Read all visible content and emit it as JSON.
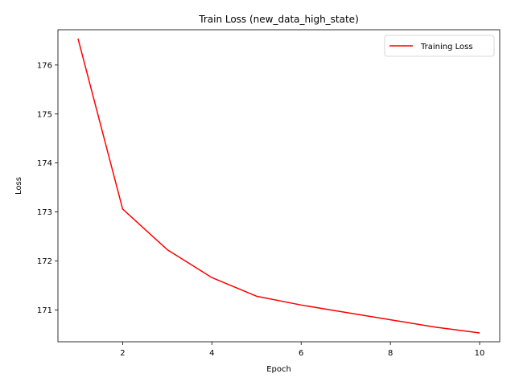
{
  "chart_data": {
    "type": "line",
    "title": "Train Loss (new_data_high_state)",
    "xlabel": "Epoch",
    "ylabel": "Loss",
    "xlim": [
      0.55,
      10.45
    ],
    "ylim": [
      170.35,
      176.72
    ],
    "xticks": [
      2,
      4,
      6,
      8,
      10
    ],
    "yticks": [
      171,
      172,
      173,
      174,
      175,
      176
    ],
    "grid": false,
    "legend_position": "top-right",
    "series": [
      {
        "name": "Training Loss",
        "color": "#ff0000",
        "x": [
          1,
          2,
          3,
          4,
          5,
          6,
          7,
          8,
          9,
          10
        ],
        "y": [
          176.54,
          173.06,
          172.23,
          171.66,
          171.28,
          171.1,
          170.95,
          170.8,
          170.65,
          170.53
        ]
      }
    ]
  }
}
